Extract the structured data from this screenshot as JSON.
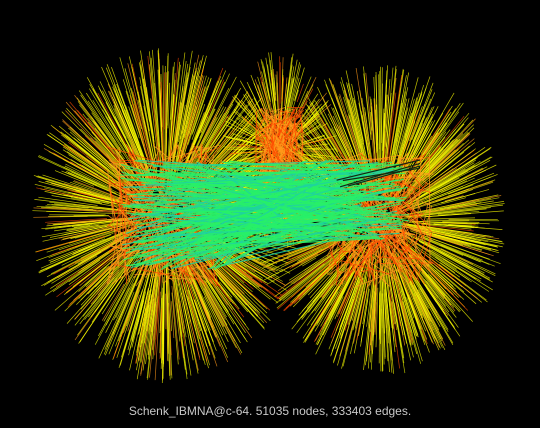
{
  "caption": "Schenk_IBMNA@c-64. 51035 nodes, 333403 edges.",
  "colors": {
    "background": "#000000",
    "caption_text": "#c8c8c8",
    "edge_short": "#ffff00",
    "edge_mid_short": "#e6f000",
    "edge_mid": "#ff9a1a",
    "edge_long": "#ff4a00",
    "edge_cross": "#28f068",
    "edge_cross_alt": "#1ed2a0",
    "edge_dark": "#102a10"
  }
}
